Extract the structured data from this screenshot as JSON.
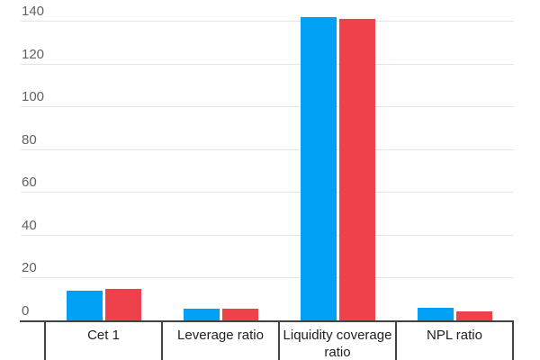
{
  "chart_data": {
    "type": "bar",
    "title": "",
    "xlabel": "",
    "ylabel": "",
    "categories": [
      "Cet 1",
      "Leverage ratio",
      "Liquidity coverage ratio",
      "NPL ratio"
    ],
    "series": [
      {
        "name": "blue",
        "color": "#00A0F4",
        "values": [
          14,
          5.3,
          142,
          5.9
        ]
      },
      {
        "name": "red",
        "color": "#EF414B",
        "values": [
          14.7,
          5.5,
          141,
          4.2
        ]
      }
    ],
    "ylim": [
      0,
      140
    ],
    "yticks": [
      0,
      20,
      40,
      60,
      80,
      100,
      120,
      140
    ],
    "grid": true,
    "legend": "none",
    "colors": {
      "axis_line": "#424242",
      "gridline": "#e4e4e4",
      "tick_label": "#616161",
      "category_label": "#212121",
      "background": "#ffffff"
    }
  }
}
